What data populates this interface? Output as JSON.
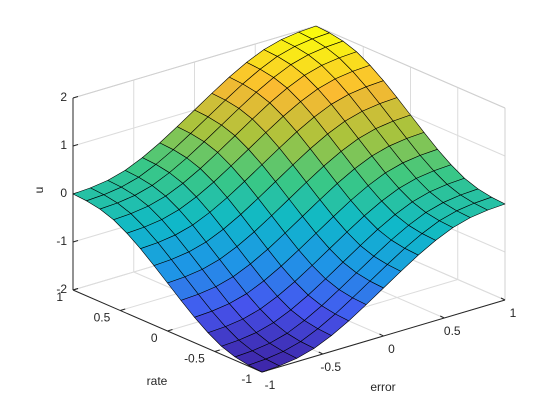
{
  "chart_data": {
    "type": "surface",
    "xlabel": "error",
    "ylabel": "rate",
    "zlabel": "u",
    "x": [
      -1,
      -0.857,
      -0.714,
      -0.571,
      -0.429,
      -0.286,
      -0.143,
      0,
      0.143,
      0.286,
      0.429,
      0.571,
      0.714,
      0.857,
      1
    ],
    "y": [
      -1,
      -0.857,
      -0.714,
      -0.571,
      -0.429,
      -0.286,
      -0.143,
      0,
      0.143,
      0.286,
      0.429,
      0.571,
      0.714,
      0.857,
      1
    ],
    "z": [
      [
        -2,
        -1.98,
        -1.93,
        -1.83,
        -1.67,
        -1.47,
        -1.24,
        -1,
        -0.76,
        -0.53,
        -0.33,
        -0.17,
        -0.07,
        -0.02,
        0
      ],
      [
        -1.98,
        -1.96,
        -1.91,
        -1.81,
        -1.65,
        -1.45,
        -1.22,
        -0.98,
        -0.74,
        -0.51,
        -0.31,
        -0.15,
        -0.05,
        0,
        0.02
      ],
      [
        -1.93,
        -1.91,
        -1.86,
        -1.76,
        -1.6,
        -1.4,
        -1.17,
        -0.93,
        -0.69,
        -0.46,
        -0.26,
        -0.1,
        0,
        0.05,
        0.07
      ],
      [
        -1.83,
        -1.81,
        -1.76,
        -1.66,
        -1.5,
        -1.3,
        -1.07,
        -0.83,
        -0.59,
        -0.36,
        -0.16,
        0,
        0.1,
        0.15,
        0.17
      ],
      [
        -1.67,
        -1.65,
        -1.6,
        -1.5,
        -1.34,
        -1.14,
        -0.91,
        -0.67,
        -0.43,
        -0.2,
        0,
        0.16,
        0.26,
        0.31,
        0.33
      ],
      [
        -1.47,
        -1.45,
        -1.4,
        -1.3,
        -1.14,
        -0.94,
        -0.71,
        -0.47,
        -0.23,
        0,
        0.2,
        0.36,
        0.46,
        0.51,
        0.53
      ],
      [
        -1.24,
        -1.22,
        -1.17,
        -1.07,
        -0.91,
        -0.71,
        -0.48,
        -0.24,
        0,
        0.23,
        0.43,
        0.59,
        0.69,
        0.74,
        0.76
      ],
      [
        -1,
        -0.98,
        -0.93,
        -0.83,
        -0.67,
        -0.47,
        -0.24,
        0,
        0.24,
        0.47,
        0.67,
        0.83,
        0.93,
        0.98,
        1
      ],
      [
        -0.76,
        -0.74,
        -0.69,
        -0.59,
        -0.43,
        -0.23,
        0,
        0.24,
        0.48,
        0.71,
        0.91,
        1.07,
        1.17,
        1.22,
        1.24
      ],
      [
        -0.53,
        -0.51,
        -0.46,
        -0.36,
        -0.2,
        0,
        0.23,
        0.47,
        0.71,
        0.94,
        1.14,
        1.3,
        1.4,
        1.45,
        1.47
      ],
      [
        -0.33,
        -0.31,
        -0.26,
        -0.16,
        0,
        0.2,
        0.43,
        0.67,
        0.91,
        1.14,
        1.34,
        1.5,
        1.6,
        1.65,
        1.67
      ],
      [
        -0.17,
        -0.15,
        -0.1,
        0,
        0.16,
        0.36,
        0.59,
        0.83,
        1.07,
        1.3,
        1.5,
        1.66,
        1.76,
        1.81,
        1.83
      ],
      [
        -0.07,
        -0.05,
        0,
        0.1,
        0.26,
        0.46,
        0.69,
        0.93,
        1.17,
        1.4,
        1.6,
        1.76,
        1.86,
        1.91,
        1.93
      ],
      [
        -0.02,
        0,
        0.05,
        0.15,
        0.31,
        0.51,
        0.74,
        0.98,
        1.22,
        1.45,
        1.65,
        1.81,
        1.91,
        1.96,
        1.98
      ],
      [
        0,
        0.02,
        0.07,
        0.17,
        0.33,
        0.53,
        0.76,
        1,
        1.24,
        1.47,
        1.67,
        1.83,
        1.93,
        1.98,
        2
      ]
    ],
    "xlim": [
      -1,
      1
    ],
    "ylim": [
      -1,
      1
    ],
    "zlim": [
      -2,
      2
    ],
    "xticks": [
      -1,
      -0.5,
      0,
      0.5,
      1
    ],
    "yticks": [
      -1,
      -0.5,
      0,
      0.5,
      1
    ],
    "zticks": [
      -2,
      -1,
      0,
      1,
      2
    ],
    "grid": true,
    "colormap": [
      "#3e26a8",
      "#4656f0",
      "#1e96e6",
      "#0fb9c8",
      "#3cc882",
      "#aac33c",
      "#fab932",
      "#f9fb0e"
    ]
  }
}
